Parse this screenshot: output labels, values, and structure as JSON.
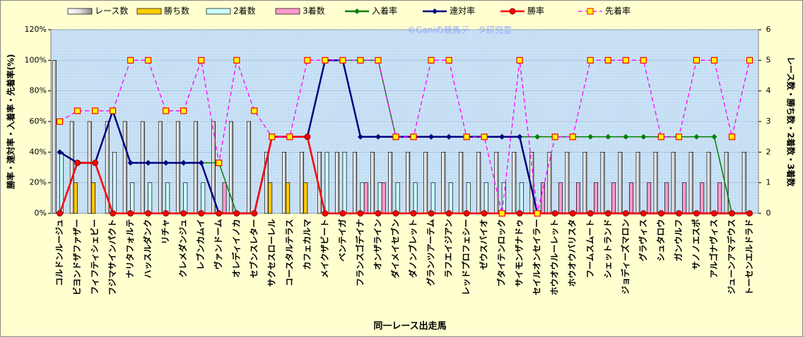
{
  "chart_data": {
    "type": "combo",
    "watermark": "©Ganiの競馬データ研究室",
    "x_label": "同一レース出走馬",
    "y_label": "勝率・連対率・入着率・先着率(%)",
    "y2_label": "レース数・勝ち数・2着数・3着数",
    "categories": [
      "コルドンルージュ",
      "ビヨンドザファザー",
      "フィフティシェビー",
      "フジマサインパクト",
      "ナリタフォルテ",
      "ハッスルダンク",
      "リチャ",
      "クレメダンジュ",
      "レブンカムイ",
      "ヴァンドーム",
      "オレディイノカ",
      "セブンスレター",
      "サクセスローレル",
      "コースタルテラス",
      "カフェカルマ",
      "メイクザビート",
      "ベンテイガ",
      "フランスゴデイナ",
      "オンザライン",
      "ダイメイセブン",
      "ダノンブレット",
      "グランツアーテム",
      "ラフエイジアン",
      "レッドプロフェシー",
      "ゼウスバイオ",
      "ブタイテンロック",
      "サイモンザナドゥ",
      "セイルオンセイラー",
      "ホウオウルーレット",
      "ホウオウバリスタ",
      "フームスムート",
      "シェットランド",
      "ジョディーズマロン",
      "グラヴィス",
      "シュタロウ",
      "ガンウルフ",
      "サノノエスポ",
      "アルゴナヴィス",
      "ジューンアマデウス",
      "トーセンエルドラド"
    ],
    "ylim": [
      0,
      120
    ],
    "yticks": [
      {
        "value": 0,
        "label": "0%"
      },
      {
        "value": 20,
        "label": "20%"
      },
      {
        "value": 40,
        "label": "40%"
      },
      {
        "value": 60,
        "label": "60%"
      },
      {
        "value": 80,
        "label": "80%"
      },
      {
        "value": 100,
        "label": "100%"
      },
      {
        "value": 120,
        "label": "120%"
      }
    ],
    "y2lim": [
      0,
      6
    ],
    "y2ticks": [
      0,
      1,
      2,
      3,
      4,
      5,
      6
    ],
    "grid": true,
    "series": [
      {
        "name": "レース数",
        "type": "bar",
        "axis": "y2",
        "color": "#ffffff",
        "values": [
          5,
          3,
          3,
          3,
          3,
          3,
          3,
          3,
          3,
          3,
          3,
          3,
          2,
          2,
          2,
          2,
          2,
          2,
          2,
          2,
          2,
          2,
          2,
          2,
          2,
          2,
          2,
          2,
          2,
          2,
          2,
          2,
          2,
          2,
          2,
          2,
          2,
          2,
          2,
          2
        ]
      },
      {
        "name": "勝ち数",
        "type": "bar",
        "axis": "y2",
        "color": "#ffcc00",
        "values": [
          0,
          1,
          1,
          0,
          0,
          0,
          0,
          0,
          0,
          0,
          0,
          0,
          1,
          1,
          1,
          0,
          0,
          0,
          0,
          0,
          0,
          0,
          0,
          0,
          0,
          0,
          0,
          0,
          0,
          0,
          0,
          0,
          0,
          0,
          0,
          0,
          0,
          0,
          0,
          0
        ]
      },
      {
        "name": "2着数",
        "type": "bar",
        "axis": "y2",
        "color": "#ccffff",
        "values": [
          2,
          0,
          0,
          2,
          1,
          1,
          1,
          1,
          1,
          0,
          0,
          0,
          0,
          0,
          0,
          2,
          2,
          1,
          1,
          1,
          1,
          1,
          1,
          1,
          1,
          1,
          1,
          0,
          0,
          0,
          0,
          0,
          0,
          0,
          0,
          0,
          0,
          0,
          0,
          0
        ]
      },
      {
        "name": "3着数",
        "type": "bar",
        "axis": "y2",
        "color": "#ff99cc",
        "values": [
          0,
          0,
          0,
          0,
          0,
          0,
          0,
          0,
          0,
          1,
          0,
          0,
          0,
          0,
          0,
          0,
          0,
          1,
          1,
          0,
          0,
          0,
          0,
          0,
          0,
          0,
          0,
          1,
          1,
          1,
          1,
          1,
          1,
          1,
          1,
          1,
          1,
          1,
          0,
          0
        ]
      },
      {
        "name": "入着率",
        "type": "line",
        "color": "#008000",
        "marker": "diamond",
        "values": [
          40,
          33,
          33,
          67,
          33,
          33,
          33,
          33,
          33,
          33,
          0,
          0,
          50,
          50,
          50,
          100,
          100,
          100,
          100,
          50,
          50,
          50,
          50,
          50,
          50,
          50,
          50,
          50,
          50,
          50,
          50,
          50,
          50,
          50,
          50,
          50,
          50,
          50,
          0,
          0
        ]
      },
      {
        "name": "連対率",
        "type": "line",
        "color": "#000080",
        "marker": "diamond",
        "values": [
          40,
          33,
          33,
          67,
          33,
          33,
          33,
          33,
          33,
          0,
          0,
          0,
          50,
          50,
          50,
          100,
          100,
          50,
          50,
          50,
          50,
          50,
          50,
          50,
          50,
          50,
          50,
          0,
          0,
          0,
          0,
          0,
          0,
          0,
          0,
          0,
          0,
          0,
          0,
          0
        ]
      },
      {
        "name": "勝率",
        "type": "line",
        "color": "#ff0000",
        "marker": "circle",
        "values": [
          0,
          33,
          33,
          0,
          0,
          0,
          0,
          0,
          0,
          0,
          0,
          0,
          50,
          50,
          50,
          0,
          0,
          0,
          0,
          0,
          0,
          0,
          0,
          0,
          0,
          0,
          0,
          0,
          0,
          0,
          0,
          0,
          0,
          0,
          0,
          0,
          0,
          0,
          0,
          0
        ]
      },
      {
        "name": "先着率",
        "type": "line",
        "color": "#ff00ff",
        "marker": "square",
        "dashed": true,
        "values": [
          60,
          67,
          67,
          67,
          100,
          100,
          67,
          67,
          100,
          33,
          100,
          67,
          50,
          50,
          100,
          100,
          100,
          100,
          100,
          50,
          50,
          100,
          100,
          50,
          50,
          0,
          100,
          0,
          50,
          50,
          100,
          100,
          100,
          100,
          50,
          50,
          100,
          100,
          50,
          100
        ]
      }
    ]
  }
}
